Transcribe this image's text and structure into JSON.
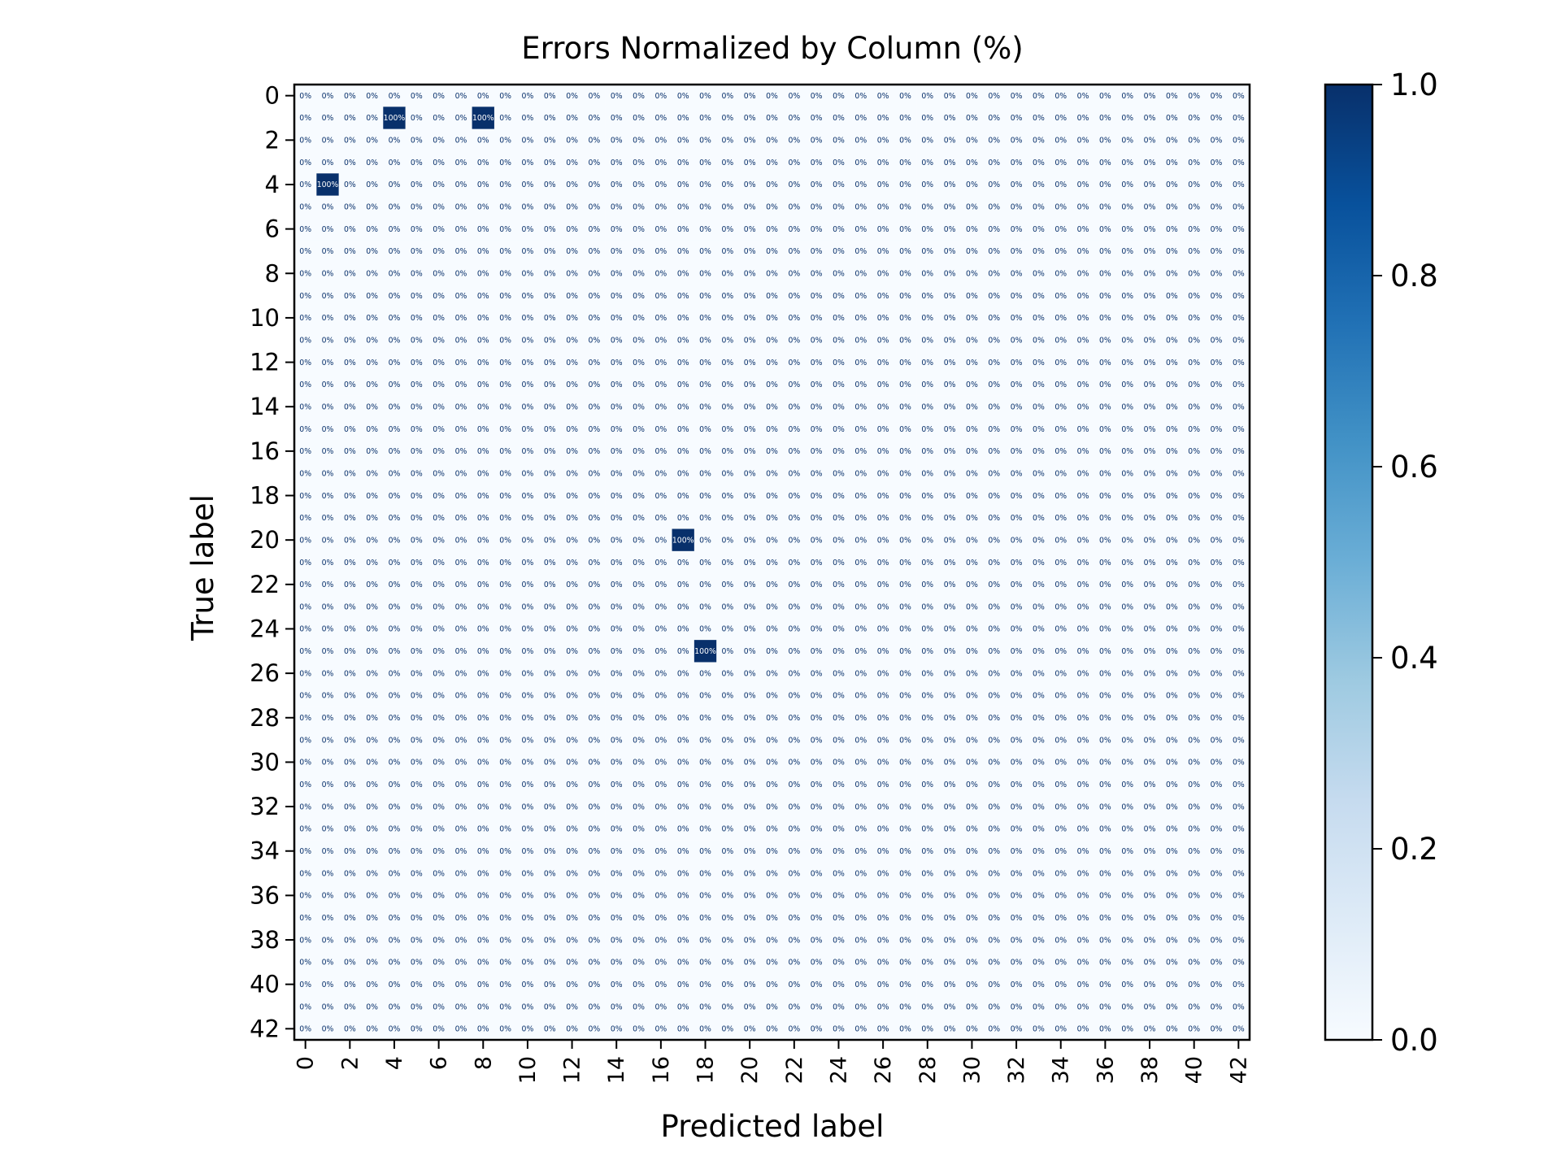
{
  "chart_data": {
    "type": "heatmap",
    "title": "Errors Normalized by Column (%)",
    "xlabel": "Predicted label",
    "ylabel": "True label",
    "n_classes": 43,
    "x_tick_labels": [
      "0",
      "2",
      "4",
      "6",
      "8",
      "10",
      "12",
      "14",
      "16",
      "18",
      "20",
      "22",
      "24",
      "26",
      "28",
      "30",
      "32",
      "34",
      "36",
      "38",
      "40",
      "42"
    ],
    "y_tick_labels": [
      "0",
      "2",
      "4",
      "6",
      "8",
      "10",
      "12",
      "14",
      "16",
      "18",
      "20",
      "22",
      "24",
      "26",
      "28",
      "30",
      "32",
      "34",
      "36",
      "38",
      "40",
      "42"
    ],
    "cell_label_default": "0%",
    "cell_label_highlight": "100%",
    "default_value": 0,
    "nonzero_cells": [
      {
        "true": 1,
        "predicted": 4,
        "value": 1.0
      },
      {
        "true": 1,
        "predicted": 8,
        "value": 1.0
      },
      {
        "true": 4,
        "predicted": 1,
        "value": 1.0
      },
      {
        "true": 20,
        "predicted": 17,
        "value": 1.0
      },
      {
        "true": 25,
        "predicted": 18,
        "value": 1.0
      }
    ],
    "colorbar": {
      "range": [
        0.0,
        1.0
      ],
      "tick_labels": [
        "0.0",
        "0.2",
        "0.4",
        "0.6",
        "0.8",
        "1.0"
      ],
      "colormap": "Blues",
      "color_low": "#f7fbff",
      "color_high": "#08306b"
    },
    "grid": false
  }
}
